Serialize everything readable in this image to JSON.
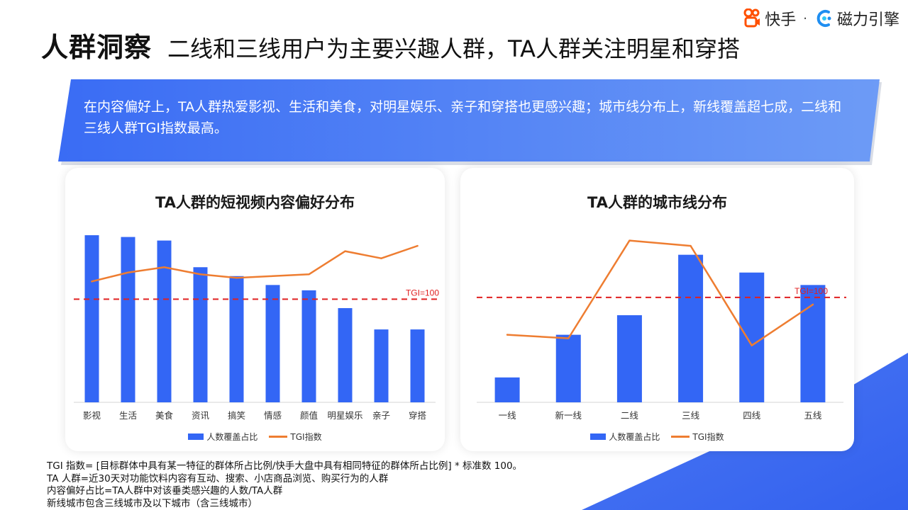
{
  "colors": {
    "accent": "#3366f5",
    "line": "#ee7d31",
    "ref": "#e02020",
    "banner_start": "#3a6cf4",
    "banner_end": "#6d9bf6"
  },
  "logo": {
    "brand1": "快手",
    "separator": "·",
    "brand2": "磁力引擎"
  },
  "header": {
    "title": "人群洞察",
    "subtitle": "二线和三线用户为主要兴趣人群，TA人群关注明星和穿搭"
  },
  "banner": {
    "text": "在内容偏好上，TA人群热爱影视、生活和美食，对明星娱乐、亲子和穿搭也更感兴趣；城市线分布上，新线覆盖超七成，二线和三线人群TGI指数最高。"
  },
  "legend": {
    "bar": "人数覆盖占比",
    "line": "TGI指数"
  },
  "chart_data": [
    {
      "type": "bar",
      "title": "TA人群的短视频内容偏好分布",
      "categories": [
        "影视",
        "生活",
        "美食",
        "资讯",
        "搞笑",
        "情感",
        "颜值",
        "明星娱乐",
        "亲子",
        "穿搭"
      ],
      "series": [
        {
          "name": "人数覆盖占比",
          "type": "bar",
          "values": [
            94,
            93,
            91,
            76,
            71,
            66,
            63,
            53,
            41,
            41
          ]
        },
        {
          "name": "TGI指数",
          "type": "line",
          "values": [
            68,
            73,
            76,
            72,
            70,
            71,
            72,
            85,
            81,
            88
          ]
        }
      ],
      "reference_line": {
        "label": "TGI=100",
        "value": 58
      },
      "ylim": [
        0,
        100
      ],
      "grid": false,
      "legend": "bottom"
    },
    {
      "type": "bar",
      "title": "TA人群的城市线分布",
      "categories": [
        "一线",
        "新一线",
        "二线",
        "三线",
        "四线",
        "五线"
      ],
      "series": [
        {
          "name": "人数覆盖占比",
          "type": "bar",
          "values": [
            14,
            38,
            49,
            83,
            73,
            66
          ]
        },
        {
          "name": "TGI指数",
          "type": "line",
          "values": [
            38,
            36,
            91,
            88,
            32,
            55
          ]
        }
      ],
      "reference_line": {
        "label": "TGI=100",
        "value": 59
      },
      "ylim": [
        0,
        100
      ],
      "grid": false,
      "legend": "bottom"
    }
  ],
  "notes": [
    "TGI 指数= [目标群体中具有某一特征的群体所占比例/快手大盘中具有相同特征的群体所占比例] * 标准数 100。",
    "TA 人群=近30天对功能饮料内容有互动、搜索、小店商品浏览、购买行为的人群",
    "内容偏好占比=TA人群中对该垂类感兴趣的人数/TA人群",
    "新线城市包含三线城市及以下城市（含三线城市）"
  ]
}
